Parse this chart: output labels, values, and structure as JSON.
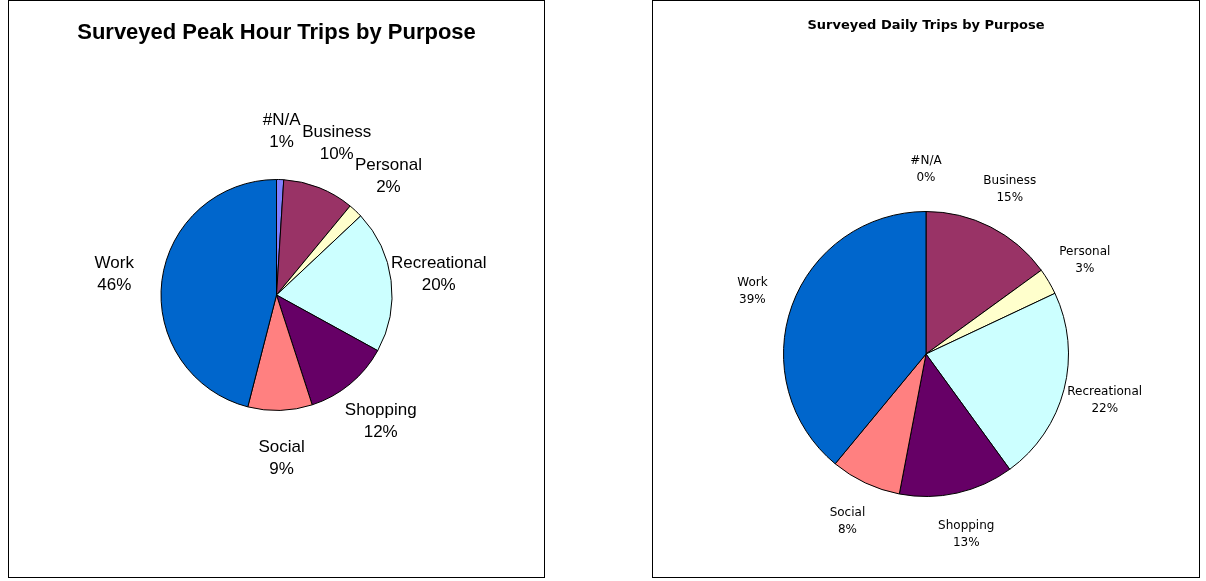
{
  "chart_data": [
    {
      "type": "pie",
      "title": "Surveyed Peak Hour Trips by Purpose",
      "categories": [
        "#N/A",
        "Business",
        "Personal",
        "Recreational",
        "Shopping",
        "Social",
        "Work"
      ],
      "values": [
        1,
        10,
        2,
        20,
        12,
        9,
        46
      ],
      "colors": [
        "#8080ff",
        "#993366",
        "#ffffcc",
        "#ccffff",
        "#660066",
        "#ff8080",
        "#0066cc"
      ],
      "value_labels": [
        "1%",
        "10%",
        "2%",
        "20%",
        "12%",
        "9%",
        "46%"
      ]
    },
    {
      "type": "pie",
      "title": "Surveyed Daily Trips by Purpose",
      "categories": [
        "#N/A",
        "Business",
        "Personal",
        "Recreational",
        "Shopping",
        "Social",
        "Work"
      ],
      "values": [
        0,
        15,
        3,
        22,
        13,
        8,
        39
      ],
      "colors": [
        "#8080ff",
        "#993366",
        "#ffffcc",
        "#ccffff",
        "#660066",
        "#ff8080",
        "#0066cc"
      ],
      "value_labels": [
        "0%",
        "15%",
        "3%",
        "22%",
        "13%",
        "8%",
        "39%"
      ]
    }
  ]
}
